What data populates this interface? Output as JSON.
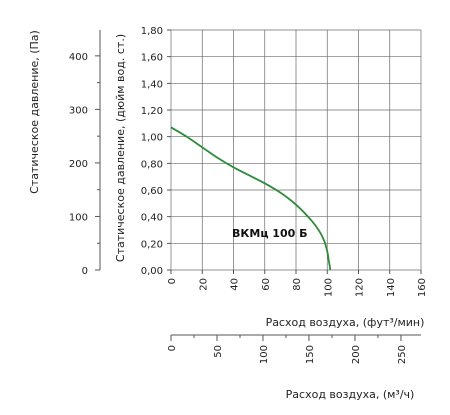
{
  "chart_data": {
    "type": "line",
    "primary_x": {
      "label": "Расход воздуха, (фут³/мин)",
      "range": [
        0,
        160
      ],
      "ticks": [
        0,
        20,
        40,
        60,
        80,
        100,
        120,
        140,
        160
      ],
      "tick_labels": [
        "0",
        "20",
        "40",
        "60",
        "80",
        "100",
        "120",
        "140",
        "160"
      ]
    },
    "secondary_x": {
      "label": "Расход воздуха, (м³/ч)",
      "range": [
        0,
        271.8
      ],
      "ticks": [
        0,
        50,
        100,
        150,
        200,
        250
      ],
      "tick_labels": [
        "0",
        "50",
        "100",
        "150",
        "200",
        "250"
      ]
    },
    "primary_y": {
      "label": "Статическое давление, (дюйм вод. ст.)",
      "range": [
        0,
        1.8
      ],
      "ticks": [
        0,
        0.2,
        0.4,
        0.6,
        0.8,
        1.0,
        1.2,
        1.4,
        1.6,
        1.8
      ],
      "tick_labels": [
        "0,00",
        "0,20",
        "0,40",
        "0,60",
        "0,80",
        "1,00",
        "1,20",
        "1,40",
        "1,60",
        "1,80"
      ]
    },
    "secondary_y": {
      "label": "Статическое давление, (Па)",
      "range": [
        0,
        448.3
      ],
      "ticks": [
        0,
        100,
        200,
        300,
        400
      ],
      "tick_labels": [
        "0",
        "100",
        "200",
        "300",
        "400"
      ]
    },
    "grid": true,
    "series": [
      {
        "name": "ВКМц 100 Б",
        "color": "#2e8b3a",
        "x": [
          0,
          10,
          20,
          30,
          40,
          50,
          60,
          70,
          80,
          90,
          95,
          98,
          100,
          101,
          102
        ],
        "y": [
          1.07,
          1.0,
          0.92,
          0.84,
          0.77,
          0.71,
          0.65,
          0.58,
          0.49,
          0.37,
          0.29,
          0.22,
          0.14,
          0.07,
          0.0
        ]
      }
    ]
  }
}
